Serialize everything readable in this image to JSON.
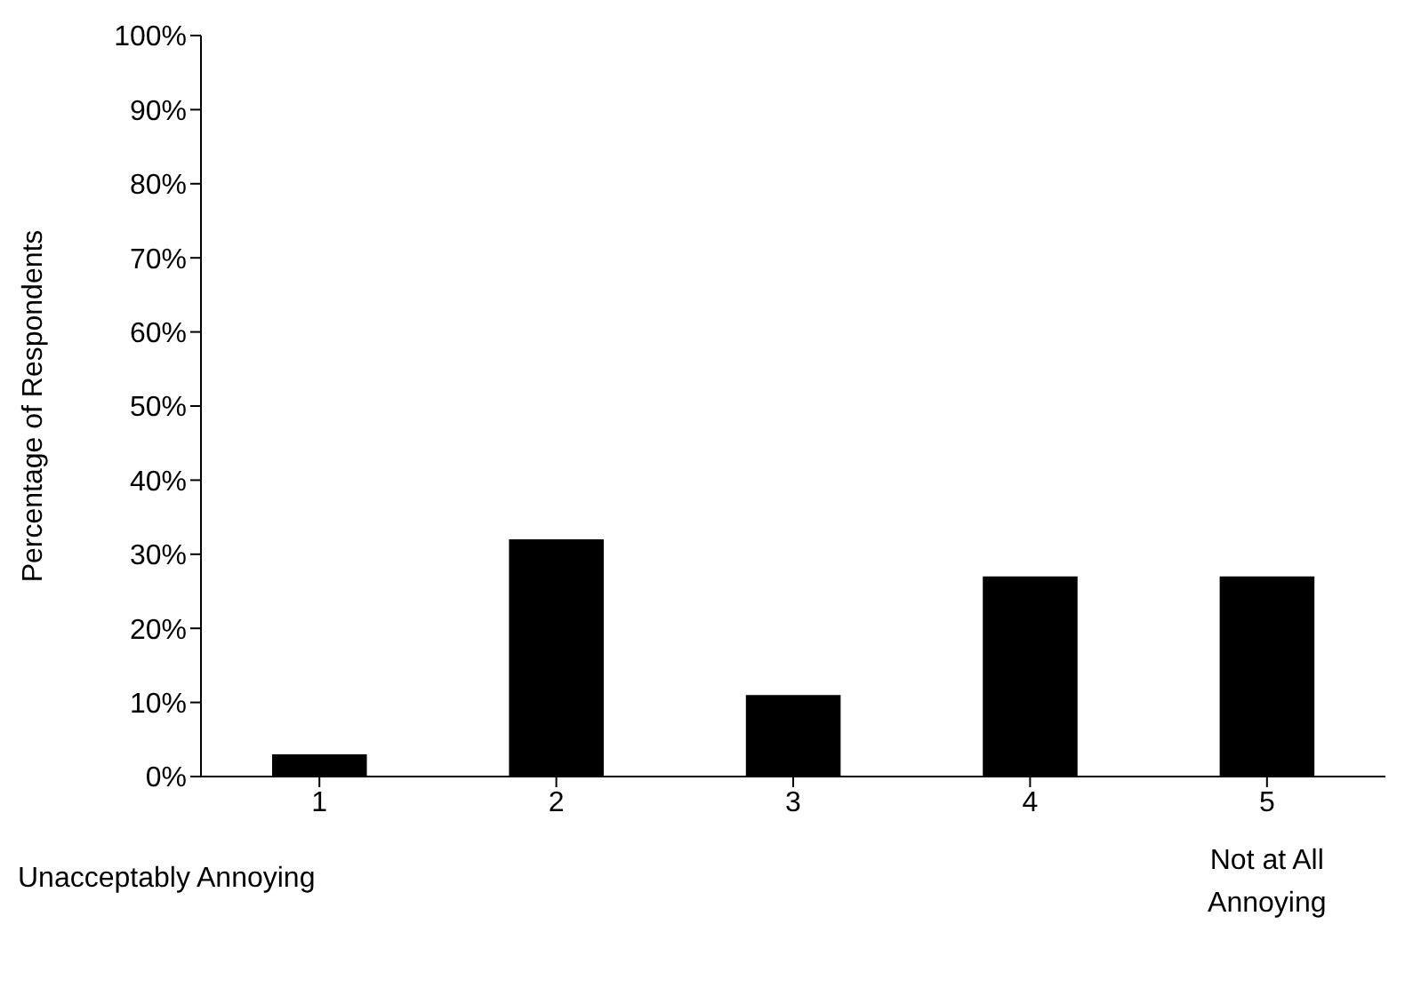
{
  "chart_data": {
    "type": "bar",
    "ylabel": "Percentage of Respondents",
    "categories": [
      "1",
      "2",
      "3",
      "4",
      "5"
    ],
    "values": [
      3,
      32,
      11,
      27,
      27
    ],
    "color": "#000000",
    "ylim": [
      0,
      100
    ],
    "yticks": [
      {
        "value": 0,
        "label": "0%"
      },
      {
        "value": 10,
        "label": "10%"
      },
      {
        "value": 20,
        "label": "20%"
      },
      {
        "value": 30,
        "label": "30%"
      },
      {
        "value": 40,
        "label": "40%"
      },
      {
        "value": 50,
        "label": "50%"
      },
      {
        "value": 60,
        "label": "60%"
      },
      {
        "value": 70,
        "label": "70%"
      },
      {
        "value": 80,
        "label": "80%"
      },
      {
        "value": 90,
        "label": "90%"
      },
      {
        "value": 100,
        "label": "100%"
      }
    ],
    "annotations": [
      "Unacceptably Annoying",
      "Not at All Annoying"
    ]
  }
}
